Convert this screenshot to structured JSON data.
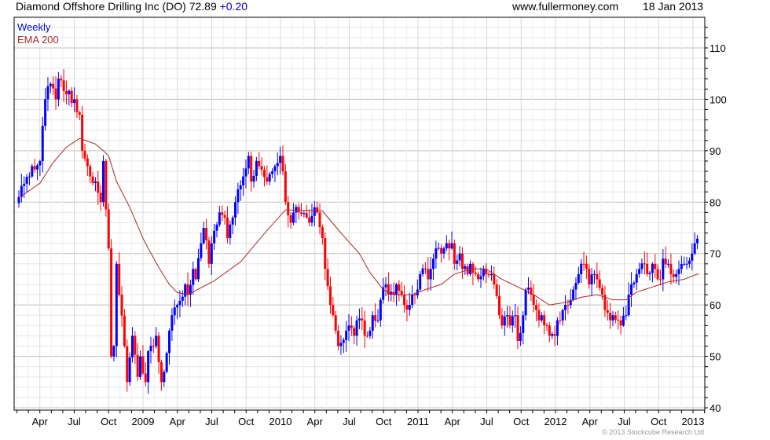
{
  "header": {
    "title": "Diamond Offshore Drilling Inc (DO) 72.89",
    "change": "+0.20",
    "site": "www.fullermoney.com",
    "date": "18 Jan 2013"
  },
  "legend": {
    "period": "Weekly",
    "indicator": "EMA 200"
  },
  "footer": "© 2013 Stockcube Research Ltd",
  "colors": {
    "up": "#0000ff",
    "down": "#ff0000",
    "ema": "#a52a2a",
    "change": "#0000cc",
    "grid_major": "#c0c0c0",
    "grid_minor": "#e6e6e6"
  },
  "chart_data": {
    "type": "candlestick",
    "title": "Diamond Offshore Drilling Inc (DO)",
    "x_unit": "weeks since first candle (early Feb 2008)",
    "ylim": [
      40,
      116
    ],
    "y_ticks": [
      40,
      50,
      60,
      70,
      80,
      90,
      100,
      110
    ],
    "x_ticks": [
      {
        "label": "Apr",
        "month": 3
      },
      {
        "label": "Jul",
        "month": 6
      },
      {
        "label": "Oct",
        "month": 9
      },
      {
        "label": "2009",
        "month": 12
      },
      {
        "label": "Apr",
        "month": 15
      },
      {
        "label": "Jul",
        "month": 18
      },
      {
        "label": "Oct",
        "month": 21
      },
      {
        "label": "2010",
        "month": 24
      },
      {
        "label": "Apr",
        "month": 27
      },
      {
        "label": "Jul",
        "month": 30
      },
      {
        "label": "Oct",
        "month": 33
      },
      {
        "label": "2011",
        "month": 36
      },
      {
        "label": "Apr",
        "month": 39
      },
      {
        "label": "Jul",
        "month": 42
      },
      {
        "label": "Oct",
        "month": 45
      },
      {
        "label": "2012",
        "month": 48
      },
      {
        "label": "Apr",
        "month": 51
      },
      {
        "label": "Jul",
        "month": 54
      },
      {
        "label": "Oct",
        "month": 57
      },
      {
        "label": "2013",
        "month": 60
      }
    ],
    "weeks": 258,
    "close_anchors": [
      [
        0,
        81
      ],
      [
        5,
        87
      ],
      [
        8,
        88
      ],
      [
        10,
        100
      ],
      [
        12,
        103
      ],
      [
        14,
        100
      ],
      [
        15,
        104
      ],
      [
        18,
        101
      ],
      [
        21,
        100
      ],
      [
        23,
        97
      ],
      [
        24,
        90
      ],
      [
        26,
        87
      ],
      [
        27,
        85
      ],
      [
        29,
        84
      ],
      [
        31,
        80
      ],
      [
        32,
        88
      ],
      [
        34,
        71
      ],
      [
        35,
        50
      ],
      [
        36,
        52
      ],
      [
        37,
        68
      ],
      [
        38,
        62
      ],
      [
        40,
        52
      ],
      [
        41,
        45
      ],
      [
        43,
        54
      ],
      [
        45,
        46
      ],
      [
        46,
        50
      ],
      [
        48,
        45
      ],
      [
        49,
        51
      ],
      [
        51,
        52
      ],
      [
        52,
        54
      ],
      [
        54,
        45
      ],
      [
        55,
        47
      ],
      [
        57,
        55
      ],
      [
        58,
        58
      ],
      [
        60,
        60
      ],
      [
        63,
        64
      ],
      [
        64,
        62
      ],
      [
        66,
        67
      ],
      [
        67,
        65
      ],
      [
        69,
        72
      ],
      [
        70,
        75
      ],
      [
        72,
        68
      ],
      [
        73,
        72
      ],
      [
        76,
        78
      ],
      [
        78,
        77
      ],
      [
        79,
        73
      ],
      [
        81,
        77
      ],
      [
        82,
        80
      ],
      [
        85,
        85
      ],
      [
        87,
        89
      ],
      [
        88,
        84
      ],
      [
        90,
        88
      ],
      [
        91,
        87
      ],
      [
        94,
        84
      ],
      [
        96,
        86
      ],
      [
        97,
        87
      ],
      [
        99,
        89
      ],
      [
        100,
        86
      ],
      [
        101,
        80
      ],
      [
        103,
        76
      ],
      [
        104,
        78
      ],
      [
        106,
        78
      ],
      [
        109,
        77
      ],
      [
        110,
        76
      ],
      [
        112,
        79
      ],
      [
        113,
        78
      ],
      [
        115,
        73
      ],
      [
        116,
        67
      ],
      [
        118,
        60
      ],
      [
        119,
        58
      ],
      [
        120,
        55
      ],
      [
        121,
        52
      ],
      [
        124,
        55
      ],
      [
        125,
        56
      ],
      [
        127,
        54
      ],
      [
        128,
        57
      ],
      [
        130,
        57
      ],
      [
        131,
        54
      ],
      [
        133,
        55
      ],
      [
        134,
        58
      ],
      [
        136,
        57
      ],
      [
        137,
        61
      ],
      [
        139,
        64
      ],
      [
        140,
        62
      ],
      [
        142,
        62
      ],
      [
        143,
        64
      ],
      [
        145,
        62
      ],
      [
        146,
        60
      ],
      [
        148,
        60
      ],
      [
        149,
        62
      ],
      [
        151,
        63
      ],
      [
        152,
        66
      ],
      [
        154,
        67
      ],
      [
        155,
        65
      ],
      [
        157,
        69
      ],
      [
        158,
        71
      ],
      [
        160,
        70
      ],
      [
        161,
        71
      ],
      [
        162,
        72
      ],
      [
        164,
        72
      ],
      [
        165,
        68
      ],
      [
        167,
        70
      ],
      [
        168,
        67
      ],
      [
        170,
        66
      ],
      [
        171,
        68
      ],
      [
        173,
        66
      ],
      [
        174,
        65
      ],
      [
        176,
        67
      ],
      [
        177,
        66
      ],
      [
        179,
        66
      ],
      [
        180,
        64
      ],
      [
        182,
        58
      ],
      [
        183,
        56
      ],
      [
        185,
        58
      ],
      [
        186,
        56
      ],
      [
        188,
        58
      ],
      [
        189,
        53
      ],
      [
        191,
        58
      ],
      [
        192,
        63
      ],
      [
        194,
        62
      ],
      [
        195,
        60
      ],
      [
        197,
        57
      ],
      [
        198,
        58
      ],
      [
        200,
        56
      ],
      [
        201,
        54
      ],
      [
        203,
        54
      ],
      [
        204,
        57
      ],
      [
        206,
        59
      ],
      [
        207,
        60
      ],
      [
        209,
        61
      ],
      [
        210,
        63
      ],
      [
        212,
        66
      ],
      [
        213,
        68
      ],
      [
        215,
        67
      ],
      [
        216,
        64
      ],
      [
        218,
        66
      ],
      [
        219,
        65
      ],
      [
        221,
        62
      ],
      [
        222,
        59
      ],
      [
        224,
        57
      ],
      [
        225,
        58
      ],
      [
        227,
        57
      ],
      [
        228,
        56
      ],
      [
        230,
        58
      ],
      [
        231,
        62
      ],
      [
        232,
        64
      ],
      [
        234,
        66
      ],
      [
        235,
        67
      ],
      [
        237,
        68
      ],
      [
        238,
        66
      ],
      [
        240,
        68
      ],
      [
        241,
        67
      ],
      [
        243,
        65
      ],
      [
        244,
        69
      ],
      [
        246,
        68
      ],
      [
        247,
        66
      ],
      [
        249,
        66
      ],
      [
        250,
        67
      ],
      [
        252,
        68
      ],
      [
        253,
        68
      ],
      [
        255,
        70
      ],
      [
        256,
        72
      ],
      [
        257,
        72.89
      ]
    ],
    "ema200_anchors": [
      [
        0,
        80.8
      ],
      [
        8,
        83.7
      ],
      [
        13,
        87.7
      ],
      [
        18,
        90.7
      ],
      [
        23,
        92.4
      ],
      [
        29,
        91.3
      ],
      [
        32,
        90
      ],
      [
        34,
        89
      ],
      [
        37,
        84
      ],
      [
        42,
        79
      ],
      [
        47,
        73
      ],
      [
        49,
        71
      ],
      [
        53,
        67.3
      ],
      [
        57,
        64
      ],
      [
        60,
        62.4
      ],
      [
        64,
        62
      ],
      [
        74,
        64.7
      ],
      [
        84,
        68.4
      ],
      [
        94,
        74.5
      ],
      [
        101,
        78.5
      ],
      [
        115,
        78.3
      ],
      [
        122,
        74
      ],
      [
        129,
        70
      ],
      [
        133,
        66.3
      ],
      [
        138,
        63
      ],
      [
        142,
        62
      ],
      [
        149,
        62
      ],
      [
        154,
        63
      ],
      [
        160,
        64
      ],
      [
        165,
        66
      ],
      [
        171,
        67
      ],
      [
        177,
        67
      ],
      [
        183,
        65
      ],
      [
        189,
        63.5
      ],
      [
        195,
        62
      ],
      [
        201,
        60
      ],
      [
        207,
        60.5
      ],
      [
        213,
        61.5
      ],
      [
        219,
        62
      ],
      [
        225,
        61
      ],
      [
        230,
        61
      ],
      [
        234,
        62.5
      ],
      [
        240,
        63.5
      ],
      [
        246,
        64.5
      ],
      [
        252,
        65
      ],
      [
        257,
        66
      ]
    ]
  }
}
